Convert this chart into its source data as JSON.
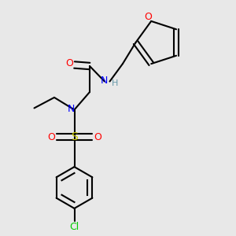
{
  "background_color": "#e8e8e8",
  "atom_colors": {
    "O": "#ff0000",
    "N": "#0000ff",
    "S": "#cccc00",
    "Cl": "#00cc00",
    "H": "#6699aa",
    "C": "#000000"
  },
  "figsize": [
    3.0,
    3.0
  ],
  "dpi": 100
}
